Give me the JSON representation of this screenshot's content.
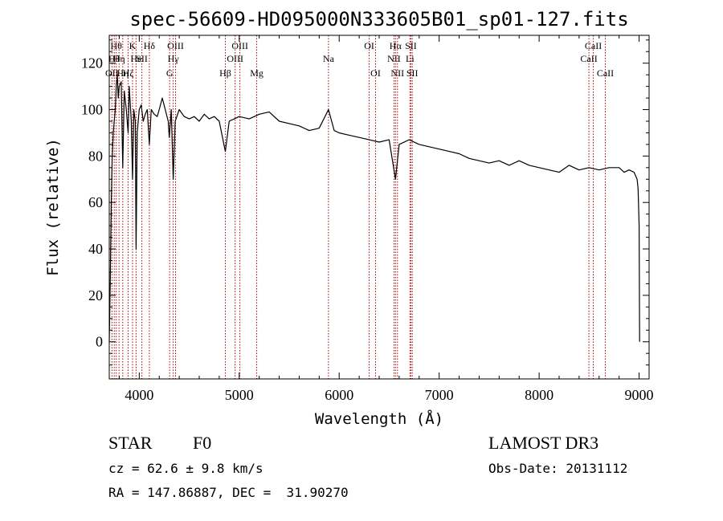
{
  "chart_data": {
    "type": "line",
    "title": "spec-56609-HD095000N333605B01_sp01-127.fits",
    "xlabel": "Wavelength (Å)",
    "ylabel": "Flux (relative)",
    "xlim": [
      3700,
      9100
    ],
    "ylim": [
      -16,
      132
    ],
    "xticks": [
      4000,
      5000,
      6000,
      7000,
      8000,
      9000
    ],
    "xtick_labels": [
      "4000",
      "5000",
      "6000",
      "7000",
      "8000",
      "9000"
    ],
    "yticks": [
      0,
      20,
      40,
      60,
      80,
      100,
      120
    ],
    "ytick_labels": [
      "0",
      "20",
      "40",
      "60",
      "80",
      "100",
      "120"
    ],
    "series": [
      {
        "color": "#000000",
        "x": [
          3700,
          3710,
          3720,
          3730,
          3740,
          3750,
          3760,
          3770,
          3780,
          3790,
          3800,
          3820,
          3835,
          3850,
          3870,
          3889,
          3900,
          3920,
          3933,
          3945,
          3960,
          3968,
          3980,
          4000,
          4020,
          4040,
          4060,
          4080,
          4101,
          4120,
          4150,
          4180,
          4200,
          4230,
          4260,
          4290,
          4300,
          4320,
          4340,
          4360,
          4400,
          4450,
          4500,
          4550,
          4600,
          4650,
          4700,
          4750,
          4800,
          4861,
          4900,
          4950,
          5000,
          5100,
          5200,
          5300,
          5400,
          5500,
          5600,
          5700,
          5800,
          5893,
          5950,
          6000,
          6100,
          6200,
          6300,
          6400,
          6500,
          6563,
          6600,
          6700,
          6800,
          6900,
          7000,
          7100,
          7200,
          7300,
          7400,
          7500,
          7600,
          7700,
          7800,
          7900,
          8000,
          8100,
          8200,
          8300,
          8400,
          8500,
          8600,
          8700,
          8800,
          8850,
          8900,
          8950,
          8980,
          8990,
          9000,
          9005
        ],
        "y": [
          0,
          25,
          60,
          80,
          90,
          95,
          100,
          110,
          115,
          105,
          110,
          112,
          75,
          108,
          100,
          90,
          110,
          95,
          70,
          100,
          95,
          40,
          90,
          100,
          102,
          95,
          98,
          100,
          85,
          100,
          98,
          97,
          100,
          105,
          100,
          95,
          88,
          100,
          70,
          95,
          100,
          97,
          96,
          97,
          95,
          98,
          96,
          97,
          95,
          82,
          95,
          96,
          97,
          96,
          98,
          99,
          95,
          94,
          93,
          91,
          92,
          100,
          91,
          90,
          89,
          88,
          87,
          86,
          87,
          70,
          85,
          87,
          85,
          84,
          83,
          82,
          81,
          79,
          78,
          77,
          78,
          76,
          78,
          76,
          75,
          74,
          73,
          76,
          74,
          75,
          74,
          75,
          75,
          73,
          74,
          73,
          70,
          66,
          50,
          0
        ]
      }
    ],
    "line_markers": [
      {
        "wave": 3727,
        "label": "OII",
        "row": 2
      },
      {
        "wave": 3750,
        "label": "Hθ",
        "row": 1
      },
      {
        "wave": 3770,
        "label": "Hθ",
        "row": 0
      },
      {
        "wave": 3798,
        "label": "Hη",
        "row": 1
      },
      {
        "wave": 3835,
        "label": "Hη",
        "row": 2
      },
      {
        "wave": 3889,
        "label": "Hζ",
        "row": 2
      },
      {
        "wave": 3933,
        "label": "K",
        "row": 0
      },
      {
        "wave": 3968,
        "label": "He",
        "row": 1
      },
      {
        "wave": 4026,
        "label": "SII",
        "row": 1
      },
      {
        "wave": 4101,
        "label": "Hδ",
        "row": 0
      },
      {
        "wave": 4304,
        "label": "G",
        "row": 2
      },
      {
        "wave": 4340,
        "label": "Hγ",
        "row": 1
      },
      {
        "wave": 4363,
        "label": "OIII",
        "row": 0
      },
      {
        "wave": 4861,
        "label": "Hβ",
        "row": 2
      },
      {
        "wave": 4959,
        "label": "OIII",
        "row": 1
      },
      {
        "wave": 5007,
        "label": "OIII",
        "row": 0
      },
      {
        "wave": 5175,
        "label": "Mg",
        "row": 2
      },
      {
        "wave": 5893,
        "label": "Na",
        "row": 1
      },
      {
        "wave": 6300,
        "label": "OI",
        "row": 0
      },
      {
        "wave": 6364,
        "label": "OI",
        "row": 2
      },
      {
        "wave": 6548,
        "label": "NII",
        "row": 1
      },
      {
        "wave": 6563,
        "label": "Hα",
        "row": 0
      },
      {
        "wave": 6583,
        "label": "NII",
        "row": 2
      },
      {
        "wave": 6708,
        "label": "Li",
        "row": 1
      },
      {
        "wave": 6717,
        "label": "SII",
        "row": 0
      },
      {
        "wave": 6731,
        "label": "SII",
        "row": 2
      },
      {
        "wave": 8498,
        "label": "CaII",
        "row": 1
      },
      {
        "wave": 8542,
        "label": "CaII",
        "row": 0
      },
      {
        "wave": 8662,
        "label": "CaII",
        "row": 2
      }
    ]
  },
  "info": {
    "object_type": "STAR",
    "subclass": "F0",
    "survey": "LAMOST DR3",
    "redshift": "cz = 62.6 ± 9.8 km/s",
    "obs_date": "Obs-Date: 20131112",
    "coords": "RA = 147.86887, DEC =  31.90270"
  }
}
